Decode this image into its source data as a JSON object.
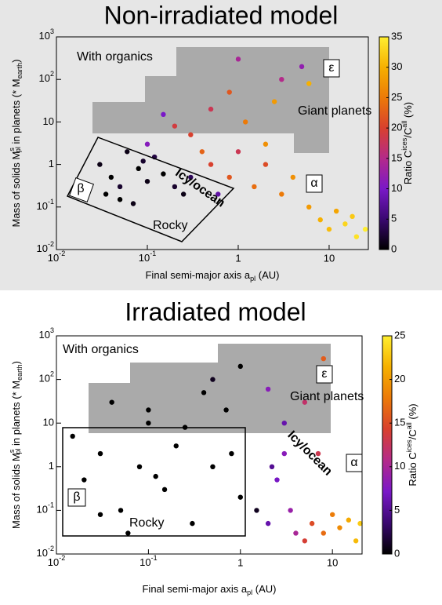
{
  "chart_data": [
    {
      "type": "scatter",
      "title": "Non-irradiated model",
      "xlabel": [
        "Final semi-major axis a",
        "pl",
        " (AU)"
      ],
      "ylabel": [
        "Mass of solids M",
        "s",
        "pl",
        " in planets (* M",
        "earth",
        ")"
      ],
      "colorbar_label": [
        "Ratio C",
        "ices",
        "/C",
        "all",
        " (%)"
      ],
      "annotations": [
        "With organics",
        "Giant planets",
        "Icy/ocean",
        "Rocky",
        "ε",
        "α",
        "β"
      ],
      "xscale": "log",
      "yscale": "log",
      "xlim": [
        0.01,
        27
      ],
      "ylim": [
        0.01,
        1000
      ],
      "xticks": [
        {
          "value": 0.01,
          "label": "10",
          "exp": "-2"
        },
        {
          "value": 0.1,
          "label": "10",
          "exp": "-1"
        },
        1,
        10
      ],
      "yticks": [
        {
          "value": 0.01,
          "label": "10",
          "exp": "-2"
        },
        {
          "value": 0.1,
          "label": "10",
          "exp": "-1"
        },
        1,
        10,
        {
          "value": 100,
          "label": "10",
          "exp": "2"
        },
        {
          "value": 1000,
          "label": "10",
          "exp": "3"
        }
      ],
      "clim": [
        0,
        35
      ],
      "cticks": [
        0,
        5,
        10,
        15,
        20,
        25,
        30,
        35
      ],
      "colormap": [
        "#000000",
        "#3a0870",
        "#7a18c8",
        "#b42a8a",
        "#d8402e",
        "#ec7a08",
        "#f6b000",
        "#ffee30"
      ],
      "x": [
        0.03,
        0.04,
        0.05,
        0.06,
        0.08,
        0.1,
        0.12,
        0.15,
        0.2,
        0.25,
        0.05,
        0.07,
        0.09,
        0.3,
        0.035,
        0.5,
        0.8,
        1,
        1.5,
        2,
        3,
        4,
        6,
        8,
        10,
        15,
        20,
        25,
        12,
        18,
        0.3,
        0.5,
        0.8,
        1.2,
        2,
        3,
        5,
        0.2,
        0.15,
        0.4,
        1,
        2.5,
        6,
        0.6,
        0.1
      ],
      "y": [
        1,
        0.5,
        0.3,
        2,
        0.8,
        0.4,
        1.5,
        0.6,
        0.3,
        0.2,
        0.15,
        0.12,
        1.2,
        0.5,
        0.2,
        1,
        0.5,
        2,
        0.3,
        1,
        0.2,
        0.5,
        0.1,
        0.05,
        0.03,
        0.04,
        0.02,
        0.03,
        0.08,
        0.06,
        5,
        20,
        50,
        10,
        3,
        100,
        200,
        8,
        15,
        2,
        300,
        30,
        80,
        0.2,
        3
      ],
      "color_values": [
        1,
        0,
        2,
        1,
        0,
        1,
        3,
        0,
        2,
        1,
        0,
        1,
        2,
        4,
        0,
        20,
        22,
        18,
        24,
        21,
        25,
        27,
        28,
        30,
        31,
        33,
        34,
        35,
        29,
        32,
        20,
        18,
        22,
        25,
        27,
        15,
        12,
        19,
        10,
        23,
        14,
        28,
        30,
        8,
        11
      ]
    },
    {
      "type": "scatter",
      "title": "Irradiated model",
      "xlabel": [
        "Final semi-major axis a",
        "pl",
        " (AU)"
      ],
      "ylabel": [
        "Mass of solids M",
        "s",
        "pl",
        " in planets (* M",
        "earth",
        ")"
      ],
      "colorbar_label": [
        "Ratio C",
        "ices",
        "/C",
        "all",
        " (%)"
      ],
      "annotations": [
        "With organics",
        "Giant planets",
        "Icy/ocean",
        "Rocky",
        "ε",
        "α",
        "β"
      ],
      "xscale": "log",
      "yscale": "log",
      "xlim": [
        0.01,
        21
      ],
      "ylim": [
        0.01,
        1000
      ],
      "xticks": [
        {
          "value": 0.01,
          "label": "10",
          "exp": "-2"
        },
        {
          "value": 0.1,
          "label": "10",
          "exp": "-1"
        },
        1,
        10
      ],
      "yticks": [
        {
          "value": 0.01,
          "label": "10",
          "exp": "-2"
        },
        {
          "value": 0.1,
          "label": "10",
          "exp": "-1"
        },
        1,
        10,
        {
          "value": 100,
          "label": "10",
          "exp": "2"
        },
        {
          "value": 1000,
          "label": "10",
          "exp": "3"
        }
      ],
      "clim": [
        0,
        25
      ],
      "cticks": [
        0,
        5,
        10,
        15,
        20,
        25
      ],
      "colormap": [
        "#000000",
        "#3a0870",
        "#7a18c8",
        "#b42a8a",
        "#d8402e",
        "#ec7a08",
        "#f6b000",
        "#ffee30"
      ],
      "x": [
        0.015,
        0.02,
        0.03,
        0.05,
        0.08,
        0.1,
        0.15,
        0.2,
        0.3,
        0.5,
        0.7,
        1,
        0.04,
        0.06,
        0.12,
        0.25,
        0.4,
        0.8,
        1.5,
        0.03,
        2,
        2.5,
        3,
        3.5,
        4,
        3,
        2.2,
        5,
        6,
        8,
        10,
        12,
        15,
        18,
        20,
        7,
        0.5,
        1,
        2,
        5,
        8,
        0.1
      ],
      "y": [
        5,
        0.5,
        2,
        0.1,
        1,
        10,
        0.3,
        3,
        0.05,
        1,
        20,
        0.2,
        30,
        0.03,
        0.6,
        8,
        50,
        2,
        0.1,
        0.08,
        0.05,
        0.5,
        2,
        0.1,
        0.03,
        10,
        1,
        0.02,
        0.05,
        0.03,
        0.08,
        0.04,
        0.06,
        0.02,
        0.05,
        2,
        100,
        200,
        60,
        30,
        300,
        20
      ],
      "color_values": [
        0,
        0,
        0,
        0,
        0,
        0,
        0,
        0,
        0,
        0,
        0,
        0,
        0,
        0,
        0,
        0,
        0,
        0,
        1,
        0,
        6,
        7,
        8,
        9,
        10,
        6,
        5,
        14,
        15,
        17,
        18,
        19,
        21,
        22,
        23,
        13,
        1,
        0,
        8,
        12,
        16,
        0
      ]
    }
  ]
}
